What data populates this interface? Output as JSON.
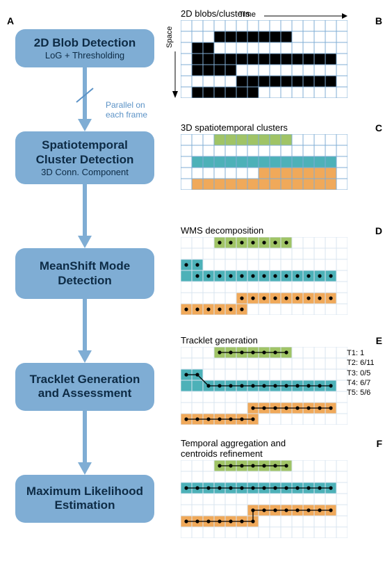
{
  "labels": {
    "A": "A",
    "B": "B",
    "C": "C",
    "D": "D",
    "E": "E",
    "F": "F"
  },
  "flowboxes": [
    {
      "title": "2D Blob Detection",
      "sub": "LoG + Thresholding"
    },
    {
      "title": "Spatiotemporal Cluster Detection",
      "sub": "3D Conn. Component"
    },
    {
      "title": "MeanShift Mode Detection",
      "sub": ""
    },
    {
      "title": "Tracklet Generation and Assessment",
      "sub": ""
    },
    {
      "title": "Maximum Likelihood Estimation",
      "sub": ""
    }
  ],
  "parallel": {
    "line1": "Parallel on",
    "line2": "each frame"
  },
  "arrow": {
    "color": "#7fadd4",
    "width": 6
  },
  "gridStyle": {
    "cell": 16,
    "line": "#7fadd4",
    "bg": "#ffffff"
  },
  "colors": {
    "black": "#000000",
    "green": "#a0c466",
    "teal": "#4db1b8",
    "orange": "#f0a95a",
    "dot": "#000000"
  },
  "panelB": {
    "title": "2D blobs/clusters",
    "axisTime": "Time",
    "axisSpace": "Space",
    "cols": 15,
    "rows": 7,
    "cells": [
      [
        1,
        3
      ],
      [
        1,
        4
      ],
      [
        1,
        5
      ],
      [
        1,
        6
      ],
      [
        1,
        7
      ],
      [
        1,
        8
      ],
      [
        1,
        9
      ],
      [
        2,
        1
      ],
      [
        2,
        2
      ],
      [
        3,
        1
      ],
      [
        3,
        2
      ],
      [
        3,
        3
      ],
      [
        3,
        4
      ],
      [
        3,
        5
      ],
      [
        3,
        6
      ],
      [
        3,
        7
      ],
      [
        3,
        8
      ],
      [
        3,
        9
      ],
      [
        3,
        10
      ],
      [
        3,
        11
      ],
      [
        3,
        12
      ],
      [
        3,
        13
      ],
      [
        4,
        1
      ],
      [
        4,
        2
      ],
      [
        4,
        3
      ],
      [
        4,
        4
      ],
      [
        5,
        5
      ],
      [
        5,
        6
      ],
      [
        5,
        7
      ],
      [
        5,
        8
      ],
      [
        5,
        9
      ],
      [
        5,
        10
      ],
      [
        5,
        11
      ],
      [
        5,
        12
      ],
      [
        5,
        13
      ],
      [
        6,
        1
      ],
      [
        6,
        2
      ],
      [
        6,
        3
      ],
      [
        6,
        4
      ],
      [
        6,
        5
      ],
      [
        6,
        6
      ]
    ]
  },
  "panelC": {
    "title": "3D spatiotemporal clusters",
    "cols": 15,
    "rows": 5,
    "green": [
      [
        0,
        3
      ],
      [
        0,
        4
      ],
      [
        0,
        5
      ],
      [
        0,
        6
      ],
      [
        0,
        7
      ],
      [
        0,
        8
      ],
      [
        0,
        9
      ]
    ],
    "teal": [
      [
        2,
        1
      ],
      [
        2,
        2
      ],
      [
        2,
        3
      ],
      [
        2,
        4
      ],
      [
        2,
        5
      ],
      [
        2,
        6
      ],
      [
        2,
        7
      ],
      [
        2,
        8
      ],
      [
        2,
        9
      ],
      [
        2,
        10
      ],
      [
        2,
        11
      ],
      [
        2,
        12
      ],
      [
        2,
        13
      ]
    ],
    "orange": [
      [
        4,
        1
      ],
      [
        4,
        2
      ],
      [
        4,
        3
      ],
      [
        4,
        4
      ],
      [
        4,
        5
      ],
      [
        4,
        6
      ],
      [
        4,
        7
      ],
      [
        4,
        8
      ],
      [
        4,
        9
      ],
      [
        4,
        10
      ],
      [
        4,
        11
      ],
      [
        4,
        12
      ],
      [
        4,
        13
      ],
      [
        3,
        7
      ],
      [
        3,
        8
      ],
      [
        3,
        9
      ],
      [
        3,
        10
      ],
      [
        3,
        11
      ],
      [
        3,
        12
      ],
      [
        3,
        13
      ]
    ]
  },
  "panelD": {
    "title": "WMS decomposition",
    "cols": 15,
    "rows": 7,
    "green": [
      [
        0,
        3
      ],
      [
        0,
        4
      ],
      [
        0,
        5
      ],
      [
        0,
        6
      ],
      [
        0,
        7
      ],
      [
        0,
        8
      ],
      [
        0,
        9
      ]
    ],
    "teal": [
      [
        2,
        0
      ],
      [
        2,
        1
      ],
      [
        3,
        0
      ],
      [
        3,
        1
      ],
      [
        3,
        2
      ],
      [
        3,
        3
      ],
      [
        3,
        4
      ],
      [
        3,
        5
      ],
      [
        3,
        6
      ],
      [
        3,
        7
      ],
      [
        3,
        8
      ],
      [
        3,
        9
      ],
      [
        3,
        10
      ],
      [
        3,
        11
      ],
      [
        3,
        12
      ],
      [
        3,
        13
      ]
    ],
    "orange": [
      [
        5,
        5
      ],
      [
        5,
        6
      ],
      [
        5,
        7
      ],
      [
        5,
        8
      ],
      [
        5,
        9
      ],
      [
        5,
        10
      ],
      [
        5,
        11
      ],
      [
        5,
        12
      ],
      [
        5,
        13
      ],
      [
        6,
        0
      ],
      [
        6,
        1
      ],
      [
        6,
        2
      ],
      [
        6,
        3
      ],
      [
        6,
        4
      ],
      [
        6,
        5
      ]
    ],
    "dots": [
      [
        0,
        3
      ],
      [
        0,
        4
      ],
      [
        0,
        5
      ],
      [
        0,
        6
      ],
      [
        0,
        7
      ],
      [
        0,
        8
      ],
      [
        0,
        9
      ],
      [
        2,
        0
      ],
      [
        2,
        1
      ],
      [
        3,
        1
      ],
      [
        3,
        2
      ],
      [
        3,
        3
      ],
      [
        3,
        4
      ],
      [
        3,
        5
      ],
      [
        3,
        6
      ],
      [
        3,
        7
      ],
      [
        3,
        8
      ],
      [
        3,
        9
      ],
      [
        3,
        10
      ],
      [
        3,
        11
      ],
      [
        3,
        12
      ],
      [
        3,
        13
      ],
      [
        5,
        5
      ],
      [
        5,
        6
      ],
      [
        5,
        7
      ],
      [
        5,
        8
      ],
      [
        5,
        9
      ],
      [
        5,
        10
      ],
      [
        5,
        11
      ],
      [
        5,
        12
      ],
      [
        5,
        13
      ],
      [
        6,
        0
      ],
      [
        6,
        1
      ],
      [
        6,
        2
      ],
      [
        6,
        3
      ],
      [
        6,
        4
      ],
      [
        6,
        5
      ]
    ]
  },
  "panelE": {
    "title": "Tracklet generation",
    "cols": 15,
    "rows": 7,
    "green": [
      [
        0,
        3
      ],
      [
        0,
        4
      ],
      [
        0,
        5
      ],
      [
        0,
        6
      ],
      [
        0,
        7
      ],
      [
        0,
        8
      ],
      [
        0,
        9
      ]
    ],
    "teal": [
      [
        2,
        0
      ],
      [
        2,
        1
      ],
      [
        3,
        0
      ],
      [
        3,
        1
      ],
      [
        3,
        2
      ],
      [
        3,
        3
      ],
      [
        3,
        4
      ],
      [
        3,
        5
      ],
      [
        3,
        6
      ],
      [
        3,
        7
      ],
      [
        3,
        8
      ],
      [
        3,
        9
      ],
      [
        3,
        10
      ],
      [
        3,
        11
      ],
      [
        3,
        12
      ],
      [
        3,
        13
      ]
    ],
    "orange": [
      [
        5,
        6
      ],
      [
        5,
        7
      ],
      [
        5,
        8
      ],
      [
        5,
        9
      ],
      [
        5,
        10
      ],
      [
        5,
        11
      ],
      [
        5,
        12
      ],
      [
        5,
        13
      ],
      [
        6,
        0
      ],
      [
        6,
        1
      ],
      [
        6,
        2
      ],
      [
        6,
        3
      ],
      [
        6,
        4
      ],
      [
        6,
        5
      ],
      [
        6,
        6
      ]
    ],
    "tracks": [
      {
        "row": 0,
        "cols": [
          3,
          4,
          5,
          6,
          7,
          8,
          9
        ]
      },
      {
        "row": 2.5,
        "poly": [
          [
            0,
            2
          ],
          [
            1,
            2
          ],
          [
            2,
            3
          ],
          [
            3,
            3
          ],
          [
            4,
            3
          ],
          [
            5,
            3
          ],
          [
            6,
            3
          ],
          [
            7,
            3
          ],
          [
            8,
            3
          ],
          [
            9,
            3
          ],
          [
            10,
            3
          ],
          [
            11,
            3
          ],
          [
            12,
            3
          ],
          [
            13,
            3
          ]
        ]
      },
      {
        "row": 5,
        "cols": [
          6,
          7,
          8,
          9,
          10,
          11,
          12,
          13
        ]
      },
      {
        "row": 6,
        "cols": [
          0,
          1,
          2,
          3,
          4,
          5,
          6
        ]
      }
    ],
    "rightLabels": [
      "T1: 1",
      "",
      "T2: 6/11",
      "T3: 0/5",
      "",
      "T4: 6/7",
      "T5: 5/6"
    ]
  },
  "panelF": {
    "title1": "Temporal aggregation and",
    "title2": "centroids refinement",
    "cols": 15,
    "rows": 7,
    "green": [
      [
        0,
        3
      ],
      [
        0,
        4
      ],
      [
        0,
        5
      ],
      [
        0,
        6
      ],
      [
        0,
        7
      ],
      [
        0,
        8
      ],
      [
        0,
        9
      ]
    ],
    "teal": [
      [
        2,
        0
      ],
      [
        2,
        1
      ],
      [
        2,
        2
      ],
      [
        2,
        3
      ],
      [
        2,
        4
      ],
      [
        2,
        5
      ],
      [
        2,
        6
      ],
      [
        2,
        7
      ],
      [
        2,
        8
      ],
      [
        2,
        9
      ],
      [
        2,
        10
      ],
      [
        2,
        11
      ],
      [
        2,
        12
      ],
      [
        2,
        13
      ]
    ],
    "orange": [
      [
        4,
        6
      ],
      [
        4,
        7
      ],
      [
        4,
        8
      ],
      [
        4,
        9
      ],
      [
        4,
        10
      ],
      [
        4,
        11
      ],
      [
        4,
        12
      ],
      [
        4,
        13
      ],
      [
        5,
        0
      ],
      [
        5,
        1
      ],
      [
        5,
        2
      ],
      [
        5,
        3
      ],
      [
        5,
        4
      ],
      [
        5,
        5
      ],
      [
        5,
        6
      ]
    ],
    "tracks": [
      {
        "row": 0,
        "cols": [
          3,
          4,
          5,
          6,
          7,
          8,
          9
        ]
      },
      {
        "row": 2,
        "cols": [
          0,
          1,
          2,
          3,
          4,
          5,
          6,
          7,
          8,
          9,
          10,
          11,
          12,
          13
        ]
      },
      {
        "poly": [
          [
            0,
            5
          ],
          [
            1,
            5
          ],
          [
            2,
            5
          ],
          [
            3,
            5
          ],
          [
            4,
            5
          ],
          [
            5,
            5
          ],
          [
            6,
            5
          ],
          [
            6,
            4
          ],
          [
            7,
            4
          ],
          [
            8,
            4
          ],
          [
            9,
            4
          ],
          [
            10,
            4
          ],
          [
            11,
            4
          ],
          [
            12,
            4
          ],
          [
            13,
            4
          ]
        ]
      }
    ]
  }
}
